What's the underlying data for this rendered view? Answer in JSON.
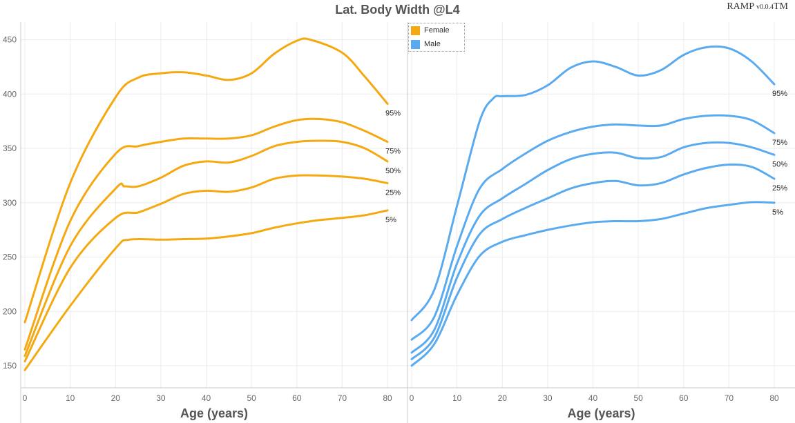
{
  "header": {
    "title": "Lat. Body Width @L4",
    "brand": "RAMP",
    "brand_version": "v0.0.4",
    "brand_mark": "TM"
  },
  "legend": [
    {
      "label": "Female",
      "color": "#f5a910"
    },
    {
      "label": "Male",
      "color": "#5aaaf0"
    }
  ],
  "chart_data": [
    {
      "type": "line",
      "panel": "Female",
      "color": "#f5a910",
      "xlabel": "Age (years)",
      "ylabel": "",
      "xlim": [
        0,
        82
      ],
      "ylim": [
        130,
        465
      ],
      "xticks": [
        0,
        10,
        20,
        30,
        40,
        50,
        60,
        70,
        80
      ],
      "yticks": [
        150,
        200,
        250,
        300,
        350,
        400,
        450
      ],
      "grid": true,
      "series": [
        {
          "name": "95%",
          "x": [
            0,
            10,
            20,
            25,
            30,
            35,
            40,
            45,
            50,
            55,
            60,
            63,
            70,
            75,
            80
          ],
          "y": [
            190,
            318,
            397,
            415,
            419,
            420,
            417,
            413,
            419,
            437,
            449,
            450,
            438,
            416,
            391
          ]
        },
        {
          "name": "75%",
          "x": [
            0,
            10,
            20,
            25,
            30,
            35,
            40,
            45,
            50,
            55,
            60,
            65,
            70,
            75,
            80
          ],
          "y": [
            165,
            283,
            345,
            352,
            356,
            359,
            359,
            359,
            362,
            370,
            376,
            377,
            374,
            366,
            356
          ]
        },
        {
          "name": "50%",
          "x": [
            0,
            10,
            20,
            22,
            25,
            30,
            35,
            40,
            45,
            50,
            55,
            60,
            65,
            70,
            75,
            80
          ],
          "y": [
            159,
            260,
            313,
            315,
            315,
            323,
            334,
            338,
            337,
            343,
            352,
            356,
            357,
            356,
            350,
            338
          ]
        },
        {
          "name": "25%",
          "x": [
            0,
            10,
            20,
            25,
            30,
            35,
            40,
            45,
            50,
            55,
            60,
            65,
            70,
            75,
            80
          ],
          "y": [
            154,
            240,
            286,
            291,
            299,
            308,
            311,
            310,
            314,
            322,
            325,
            325,
            324,
            322,
            318
          ]
        },
        {
          "name": "5%",
          "x": [
            0,
            10,
            20,
            23,
            30,
            35,
            40,
            45,
            50,
            55,
            60,
            65,
            70,
            75,
            80
          ],
          "y": [
            146,
            205,
            258,
            266,
            266,
            266.5,
            267,
            269,
            272,
            277,
            281,
            284,
            286,
            288.5,
            293
          ]
        }
      ]
    },
    {
      "type": "line",
      "panel": "Male",
      "color": "#5aaaf0",
      "xlabel": "Age (years)",
      "ylabel": "",
      "xlim": [
        0,
        82
      ],
      "ylim": [
        130,
        465
      ],
      "xticks": [
        0,
        10,
        20,
        30,
        40,
        50,
        60,
        70,
        80
      ],
      "yticks": [
        150,
        200,
        250,
        300,
        350,
        400,
        450
      ],
      "grid": true,
      "series": [
        {
          "name": "95%",
          "x": [
            0,
            5,
            10,
            15,
            18,
            20,
            25,
            30,
            35,
            40,
            45,
            50,
            55,
            60,
            65,
            70,
            75,
            80
          ],
          "y": [
            192,
            220,
            297,
            375,
            396,
            398,
            399,
            408,
            424,
            430,
            425,
            417,
            422,
            436,
            443,
            442,
            430,
            409
          ]
        },
        {
          "name": "75%",
          "x": [
            0,
            5,
            10,
            15,
            20,
            25,
            30,
            35,
            40,
            45,
            50,
            55,
            60,
            65,
            70,
            75,
            80
          ],
          "y": [
            174,
            195,
            260,
            313,
            331,
            345,
            357,
            365,
            370,
            372,
            371,
            371,
            377,
            380,
            380,
            376,
            364
          ]
        },
        {
          "name": "50%",
          "x": [
            0,
            5,
            10,
            15,
            20,
            25,
            30,
            35,
            40,
            45,
            50,
            55,
            60,
            65,
            70,
            75,
            80
          ],
          "y": [
            162,
            183,
            244,
            288,
            304,
            317,
            330,
            340,
            345,
            346,
            341,
            342,
            351,
            355,
            355,
            351,
            344
          ]
        },
        {
          "name": "25%",
          "x": [
            0,
            5,
            10,
            15,
            20,
            25,
            30,
            35,
            40,
            45,
            50,
            55,
            60,
            65,
            70,
            75,
            80
          ],
          "y": [
            156,
            176,
            231,
            271,
            285,
            295,
            304,
            313,
            318,
            320,
            316,
            318,
            326,
            332,
            335,
            333,
            322
          ]
        },
        {
          "name": "5%",
          "x": [
            0,
            5,
            10,
            15,
            20,
            25,
            30,
            35,
            40,
            45,
            50,
            55,
            60,
            65,
            70,
            75,
            80
          ],
          "y": [
            150,
            170,
            215,
            251,
            264,
            270,
            275,
            279,
            282,
            283,
            283,
            285,
            290,
            295,
            298,
            300.5,
            300
          ]
        }
      ]
    }
  ]
}
